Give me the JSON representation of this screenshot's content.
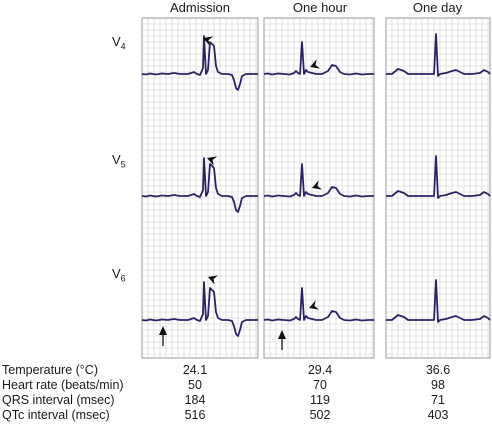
{
  "columns": [
    "Admission",
    "One hour",
    "One day"
  ],
  "leads": [
    {
      "name": "V",
      "sub": "4"
    },
    {
      "name": "V",
      "sub": "5"
    },
    {
      "name": "V",
      "sub": "6"
    }
  ],
  "table": {
    "rows": [
      {
        "label": "Temperature (°C)",
        "values": [
          "24.1",
          "29.4",
          "36.6"
        ]
      },
      {
        "label": "Heart rate (beats/min)",
        "values": [
          "50",
          "70",
          "98"
        ]
      },
      {
        "label": "QRS interval (msec)",
        "values": [
          "184",
          "119",
          "71"
        ]
      },
      {
        "label": "QTc interval (msec)",
        "values": [
          "516",
          "502",
          "403"
        ]
      }
    ]
  },
  "colors": {
    "trace": "#2a2466",
    "grid": "#cfcfcf",
    "border": "#9a9a9a"
  }
}
